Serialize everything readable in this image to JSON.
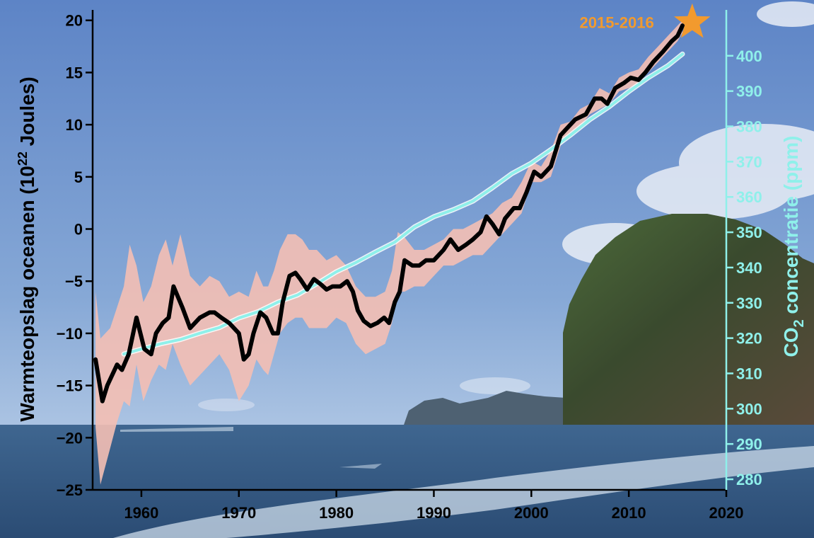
{
  "chart_data": {
    "type": "line",
    "title": "",
    "xlabel": "",
    "ylabel_left": {
      "main": "Warmteopslag oceanen (10",
      "sup": "22",
      "tail": " Joules)"
    },
    "ylabel_right": {
      "pre": "CO",
      "sub": "2",
      "post": " concentratie (ppm)"
    },
    "xlim": [
      1955,
      2020
    ],
    "ylim_left": [
      -25,
      21
    ],
    "ylim_right": [
      277,
      413
    ],
    "x_ticks": [
      1960,
      1970,
      1980,
      1990,
      2000,
      2010,
      2020
    ],
    "y_left_ticks": [
      "20",
      "15",
      "10",
      "5",
      "0",
      "−5",
      "−10",
      "−15",
      "−20",
      "−25"
    ],
    "y_left_values": [
      20,
      15,
      10,
      5,
      0,
      -5,
      -10,
      -15,
      -20,
      -25
    ],
    "y_right_ticks": [
      400,
      390,
      380,
      370,
      360,
      350,
      340,
      330,
      320,
      310,
      300,
      290,
      280
    ],
    "colors": {
      "ocean_heat": "#000000",
      "uncertainty": "#f4bfb4",
      "co2": "#8ff0ea",
      "right_axis": "#8ff0ea",
      "star": "#f29a2e",
      "annotation": "#f29a2e"
    },
    "annotation": {
      "text": "2015-2016",
      "x": 2016.5,
      "y": 19.8
    },
    "series": [
      {
        "axis": "left",
        "x": [
          1955.3,
          1956,
          1956.5,
          1957.5,
          1958,
          1958.7,
          1959.5,
          1960.3,
          1961,
          1961.5,
          1962.2,
          1962.8,
          1963.3,
          1964.2,
          1965,
          1966,
          1967,
          1967.5,
          1968.2,
          1969,
          1970,
          1970.5,
          1971,
          1971.5,
          1972.2,
          1972.8,
          1973.5,
          1974,
          1974.5,
          1975.2,
          1975.8,
          1976.3,
          1977,
          1977.7,
          1978.4,
          1979,
          1979.6,
          1980.4,
          1981.1,
          1981.7,
          1982.2,
          1982.8,
          1983.5,
          1984.2,
          1984.9,
          1985.4,
          1986,
          1986.5,
          1987,
          1987.8,
          1988.5,
          1989.2,
          1990,
          1991,
          1991.7,
          1992.5,
          1993.3,
          1994,
          1994.8,
          1995.4,
          1996,
          1996.7,
          1997.3,
          1998.2,
          1998.8,
          1999.5,
          2000.3,
          2001,
          2002,
          2003,
          2003.5,
          2004.5,
          2005.6,
          2006.5,
          2007.2,
          2007.8,
          2008.6,
          2009.5,
          2010.2,
          2011,
          2011.7,
          2012.5,
          2013.5,
          2014.4,
          2015,
          2015.5
        ],
        "y": [
          -12.5,
          -16.5,
          -15,
          -13,
          -13.5,
          -12,
          -8.5,
          -11.5,
          -12,
          -10,
          -9,
          -8.5,
          -5.5,
          -7.5,
          -9.5,
          -8.5,
          -8,
          -8,
          -8.5,
          -9,
          -10,
          -12.5,
          -12,
          -10,
          -8,
          -8.5,
          -10,
          -10,
          -7,
          -4.5,
          -4.2,
          -4.8,
          -5.8,
          -4.8,
          -5.3,
          -5.8,
          -5.5,
          -5.5,
          -5,
          -6,
          -7.8,
          -8.8,
          -9.3,
          -9,
          -8.5,
          -9,
          -7,
          -6,
          -3,
          -3.5,
          -3.5,
          -3,
          -3,
          -2,
          -1,
          -2,
          -1.5,
          -1,
          -0.3,
          1.2,
          0.5,
          -0.5,
          1,
          2,
          2,
          3.5,
          5.5,
          5,
          6,
          9,
          9.5,
          10.5,
          11,
          12.5,
          12.5,
          12,
          13.5,
          14,
          14.5,
          14.3,
          15,
          16,
          17,
          18,
          18.5,
          19.5
        ]
      },
      {
        "axis": "right",
        "x": [
          1958.2,
          1960,
          1962,
          1964,
          1966,
          1968,
          1970,
          1972,
          1974,
          1976,
          1978,
          1980,
          1982,
          1984,
          1986,
          1988,
          1990,
          1992,
          1994,
          1996,
          1998,
          2000,
          2002,
          2004,
          2006,
          2008,
          2010,
          2012,
          2014,
          2015.5
        ],
        "y": [
          315.5,
          316.9,
          318.4,
          319.6,
          321.4,
          323,
          325.7,
          327.5,
          330.2,
          332.2,
          335.4,
          338.8,
          341.4,
          344.4,
          347.2,
          351.5,
          354.4,
          356.4,
          358.8,
          362.6,
          366.6,
          369.6,
          373.4,
          377.5,
          381.9,
          385.6,
          389.9,
          393.8,
          397.2,
          400.5
        ]
      },
      {
        "axis": "left",
        "x": [
          1955.3,
          1955.8,
          1956.8,
          1957.5,
          1958.2,
          1958.8,
          1959.5,
          1960.2,
          1961,
          1961.8,
          1962.5,
          1963.2,
          1964,
          1965,
          1966,
          1967,
          1968,
          1969,
          1970,
          1971,
          1971.8,
          1972.5,
          1973,
          1973.6,
          1974.2,
          1975,
          1975.8,
          1976.5,
          1977.2,
          1978,
          1979,
          1980,
          1981,
          1982,
          1983,
          1984,
          1985,
          1985.7,
          1986.3,
          1987,
          1988,
          1989,
          1990,
          1991,
          1992,
          1993,
          1994,
          1995,
          1996,
          1997,
          1998,
          1999,
          2000,
          2001,
          2002,
          2003,
          2004,
          2005,
          2006,
          2007,
          2008,
          2009,
          2010,
          2011,
          2012,
          2013,
          2014,
          2015,
          2015.5
        ],
        "y": [
          -6,
          -10.5,
          -9.5,
          -7.5,
          -5.5,
          -1.5,
          -3.5,
          -7,
          -5.5,
          -2.5,
          -1,
          -3.5,
          -0.5,
          -4.5,
          -5.5,
          -4.5,
          -5,
          -6.5,
          -6,
          -6.5,
          -4,
          -5.5,
          -5.5,
          -4,
          -2,
          -0.5,
          -0.5,
          -1,
          -2,
          -2,
          -3,
          -2.5,
          -3.5,
          -5.5,
          -6.5,
          -6.5,
          -6,
          -4,
          -0.3,
          -0.8,
          -2,
          -2,
          -1.5,
          -1,
          0,
          0,
          0.5,
          1,
          1.5,
          2.5,
          3,
          4.5,
          6.5,
          6,
          7.5,
          10,
          10.3,
          11.5,
          12,
          13.5,
          13,
          14.5,
          15,
          15.3,
          16.5,
          17.5,
          18.5,
          19.5,
          20
        ]
      },
      {
        "axis": "left",
        "x": [
          1955.3,
          1955.8,
          1956.8,
          1957.5,
          1958.2,
          1958.8,
          1959.5,
          1960.2,
          1961,
          1961.8,
          1962.5,
          1963.2,
          1964,
          1965,
          1966,
          1967,
          1968,
          1969,
          1970,
          1971,
          1971.8,
          1972.5,
          1973,
          1973.6,
          1974.2,
          1975,
          1975.8,
          1976.5,
          1977.2,
          1978,
          1979,
          1980,
          1981,
          1982,
          1983,
          1984,
          1985,
          1985.7,
          1986.3,
          1987,
          1988,
          1989,
          1990,
          1991,
          1992,
          1993,
          1994,
          1995,
          1996,
          1997,
          1998,
          1999,
          2000,
          2001,
          2002,
          2003,
          2004,
          2005,
          2006,
          2007,
          2008,
          2009,
          2010,
          2011,
          2012,
          2013,
          2014,
          2015,
          2015.5
        ],
        "y": [
          -19,
          -24.5,
          -21,
          -18.5,
          -16.5,
          -17,
          -13,
          -16.5,
          -14.5,
          -13,
          -13.5,
          -11,
          -13,
          -15,
          -14,
          -13,
          -12,
          -13.5,
          -16.5,
          -15,
          -12.5,
          -13.5,
          -14,
          -12,
          -10,
          -9,
          -8.5,
          -8.5,
          -9.5,
          -9.5,
          -9.5,
          -8.5,
          -9,
          -11,
          -12,
          -11.5,
          -11,
          -9,
          -6,
          -6,
          -5.5,
          -5.5,
          -4.5,
          -3.5,
          -3.5,
          -3,
          -2.5,
          -2.5,
          -1.5,
          -0.5,
          0.5,
          1.5,
          4.5,
          4.5,
          5,
          8,
          9,
          9.8,
          11,
          11.5,
          12,
          13.2,
          13.5,
          14,
          15,
          16,
          17,
          18,
          18.8
        ]
      }
    ]
  }
}
